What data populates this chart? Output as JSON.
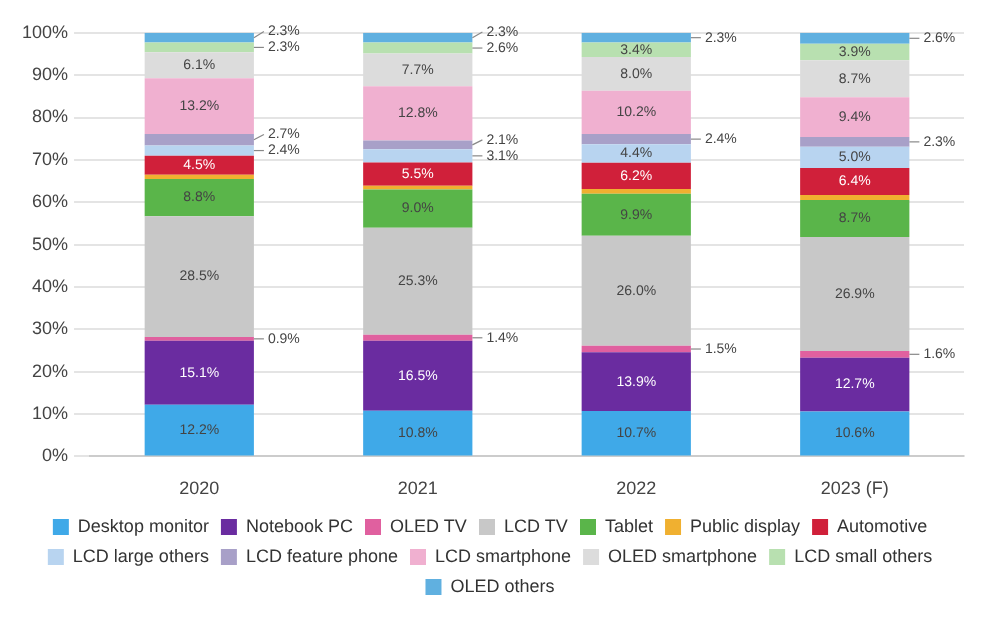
{
  "chart_data": {
    "type": "bar",
    "stacked": true,
    "categories": [
      "2020",
      "2021",
      "2022",
      "2023 (F)"
    ],
    "series": [
      {
        "name": "Desktop monitor",
        "color": "#3fa9e8",
        "values": [
          12.2,
          10.8,
          10.7,
          10.6
        ],
        "value_labels": [
          "12.2%",
          "10.8%",
          "10.7%",
          "10.6%"
        ]
      },
      {
        "name": "Notebook PC",
        "color": "#6a2ca0",
        "values": [
          15.1,
          16.5,
          13.9,
          12.7
        ],
        "value_labels": [
          "15.1%",
          "16.5%",
          "13.9%",
          "12.7%"
        ]
      },
      {
        "name": "OLED TV",
        "color": "#e0609f",
        "values": [
          0.9,
          1.4,
          1.5,
          1.6
        ],
        "value_labels": [
          "0.9%",
          "1.4%",
          "1.5%",
          "1.6%"
        ]
      },
      {
        "name": "LCD TV",
        "color": "#c8c8c8",
        "values": [
          28.5,
          25.3,
          26.0,
          26.9
        ],
        "value_labels": [
          "28.5%",
          "25.3%",
          "26.0%",
          "26.9%"
        ]
      },
      {
        "name": "Tablet",
        "color": "#5ab54a",
        "values": [
          8.8,
          9.0,
          9.9,
          8.7
        ],
        "value_labels": [
          "8.8%",
          "9.0%",
          "9.9%",
          "8.7%"
        ]
      },
      {
        "name": "Public display",
        "color": "#f0b030",
        "values": [
          1.0,
          0.9,
          1.1,
          1.2
        ],
        "value_labels": [
          null,
          null,
          null,
          null
        ]
      },
      {
        "name": "Automotive",
        "color": "#d0203a",
        "values": [
          4.5,
          5.5,
          6.2,
          6.4
        ],
        "value_labels": [
          "4.5%",
          "5.5%",
          "6.2%",
          "6.4%"
        ]
      },
      {
        "name": "LCD large others",
        "color": "#b8d4f0",
        "values": [
          2.4,
          3.1,
          4.4,
          5.0
        ],
        "value_labels": [
          "2.4%",
          "3.1%",
          "4.4%",
          "5.0%"
        ]
      },
      {
        "name": "LCD feature phone",
        "color": "#a8a0c8",
        "values": [
          2.7,
          2.1,
          2.4,
          2.3
        ],
        "value_labels": [
          "2.7%",
          "2.1%",
          "2.4%",
          "2.3%"
        ]
      },
      {
        "name": "LCD smartphone",
        "color": "#f0b0d0",
        "values": [
          13.2,
          12.8,
          10.2,
          9.4
        ],
        "value_labels": [
          "13.2%",
          "12.8%",
          "10.2%",
          "9.4%"
        ]
      },
      {
        "name": "OLED smartphone",
        "color": "#dcdcdc",
        "values": [
          6.1,
          7.7,
          8.0,
          8.7
        ],
        "value_labels": [
          "6.1%",
          "7.7%",
          "8.0%",
          "8.7%"
        ]
      },
      {
        "name": "LCD small others",
        "color": "#b8e0b0",
        "values": [
          2.3,
          2.6,
          3.4,
          3.9
        ],
        "value_labels": [
          "2.3%",
          "2.6%",
          "3.4%",
          "3.9%"
        ]
      },
      {
        "name": "OLED others",
        "color": "#60b0e0",
        "values": [
          2.3,
          2.3,
          2.3,
          2.6
        ],
        "value_labels": [
          "2.3%",
          "2.3%",
          "2.3%",
          "2.6%"
        ]
      }
    ],
    "ylim": [
      0,
      100
    ],
    "yticks": [
      {
        "value": 0,
        "label": "0%"
      },
      {
        "value": 10,
        "label": "10%"
      },
      {
        "value": 20,
        "label": "20%"
      },
      {
        "value": 30,
        "label": "30%"
      },
      {
        "value": 40,
        "label": "40%"
      },
      {
        "value": 50,
        "label": "50%"
      },
      {
        "value": 60,
        "label": "60%"
      },
      {
        "value": 70,
        "label": "70%"
      },
      {
        "value": 80,
        "label": "80%"
      },
      {
        "value": 90,
        "label": "90%"
      },
      {
        "value": 100,
        "label": "100%"
      }
    ],
    "grid": "y",
    "legend": "bottom"
  }
}
